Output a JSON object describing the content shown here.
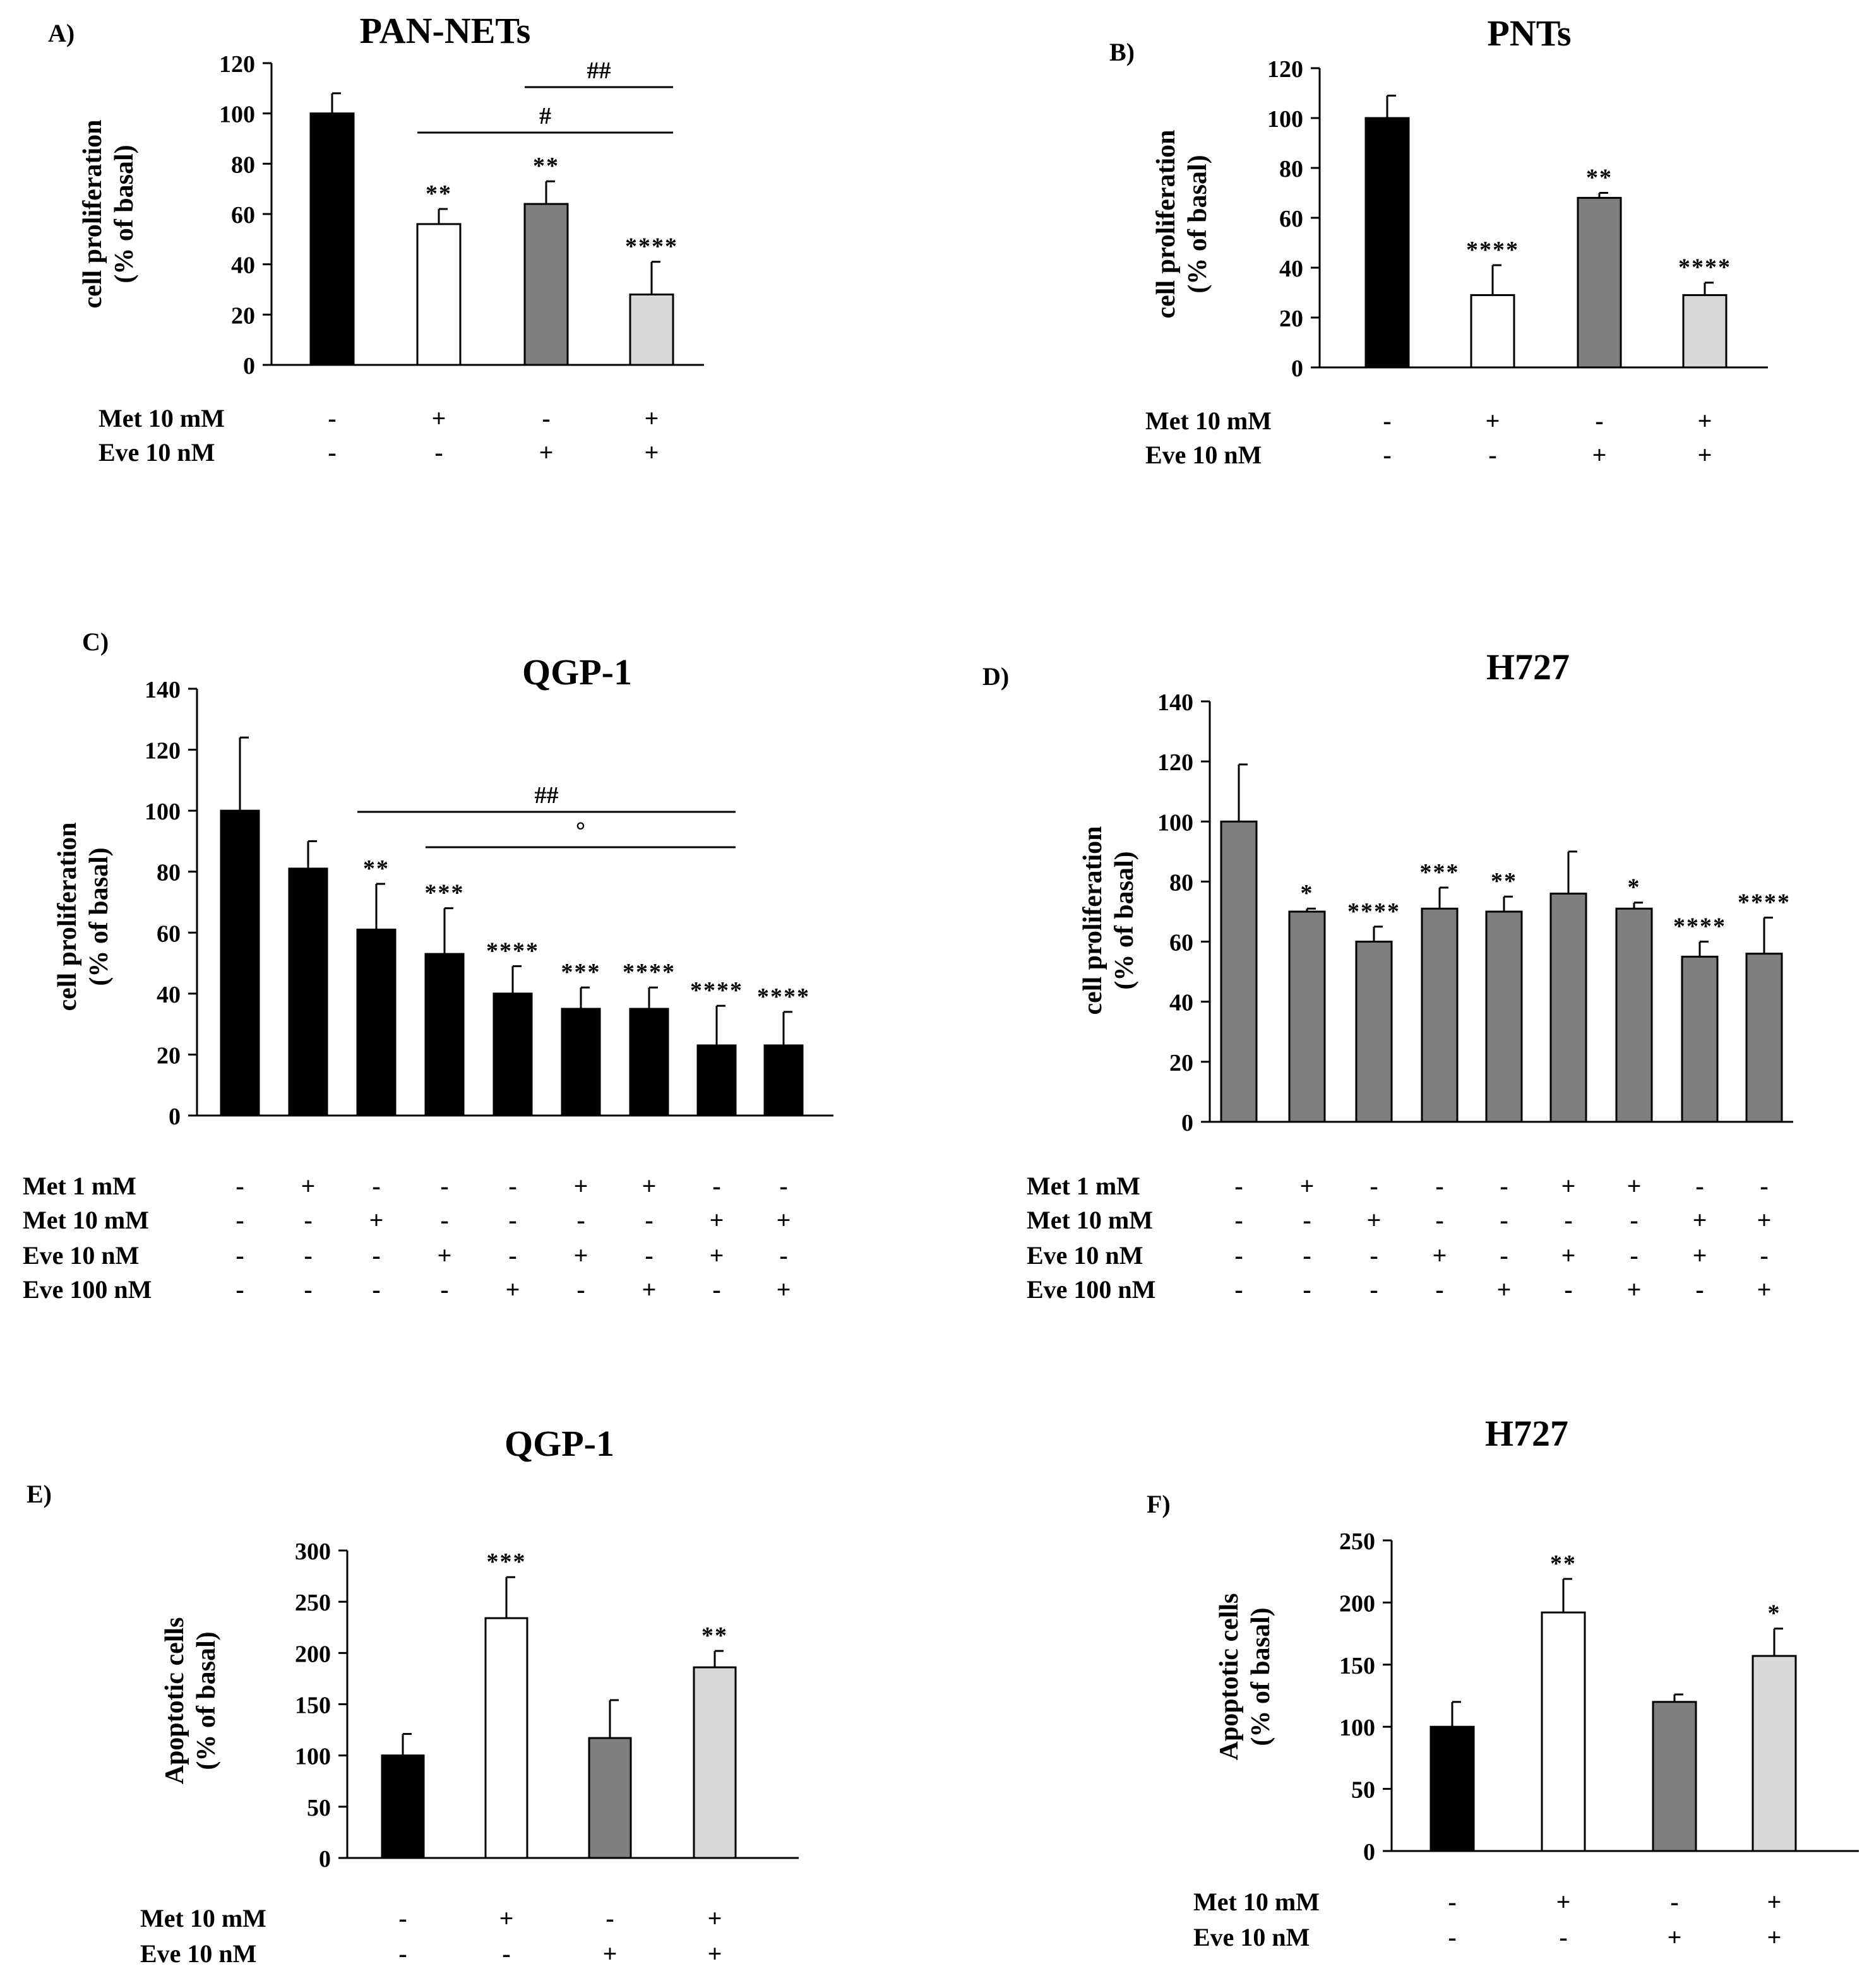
{
  "colors": {
    "black": "#000000",
    "white": "#ffffff",
    "dark_gray": "#7f7f7f",
    "light_gray": "#d9d9d9"
  },
  "chart_data": [
    {
      "id": "A",
      "type": "bar",
      "panel_label": "A)",
      "title": "PAN-NETs",
      "ylabel": [
        "cell proliferation",
        "(% of basal)"
      ],
      "ylim": [
        0,
        120
      ],
      "yticks": [
        0,
        20,
        40,
        60,
        80,
        100,
        120
      ],
      "values": [
        100,
        56,
        64,
        28
      ],
      "errors": [
        8,
        6,
        9,
        13
      ],
      "bar_colors": [
        "black",
        "white",
        "dark_gray",
        "light_gray"
      ],
      "stars": [
        "",
        "**",
        "**",
        "****"
      ],
      "conditions": [
        {
          "label": "Met 10 mM",
          "signs": [
            "-",
            "+",
            "-",
            "+"
          ]
        },
        {
          "label": "Eve 10 nM",
          "signs": [
            "-",
            "-",
            "+",
            "+"
          ]
        }
      ],
      "brackets": [
        {
          "symbol": "##",
          "from": 2,
          "to": 3
        },
        {
          "symbol": "#",
          "from": 1,
          "to": 3
        }
      ]
    },
    {
      "id": "B",
      "type": "bar",
      "panel_label": "B)",
      "title": "PNTs",
      "ylabel": [
        "cell proliferation",
        "(% of basal)"
      ],
      "ylim": [
        0,
        120
      ],
      "yticks": [
        0,
        20,
        40,
        60,
        80,
        100,
        120
      ],
      "values": [
        100,
        29,
        68,
        29
      ],
      "errors": [
        9,
        12,
        2,
        5
      ],
      "bar_colors": [
        "black",
        "white",
        "dark_gray",
        "light_gray"
      ],
      "stars": [
        "",
        "****",
        "**",
        "****"
      ],
      "conditions": [
        {
          "label": "Met 10 mM",
          "signs": [
            "-",
            "+",
            "-",
            "+"
          ]
        },
        {
          "label": "Eve 10 nM",
          "signs": [
            "-",
            "-",
            "+",
            "+"
          ]
        }
      ],
      "brackets": []
    },
    {
      "id": "C",
      "type": "bar",
      "panel_label": "C)",
      "title": "QGP-1",
      "ylabel": [
        "cell proliferation",
        "(% of basal)"
      ],
      "ylim": [
        0,
        140
      ],
      "yticks": [
        0,
        20,
        40,
        60,
        80,
        100,
        120,
        140
      ],
      "values": [
        100,
        81,
        61,
        53,
        40,
        35,
        35,
        23,
        23
      ],
      "errors": [
        24,
        9,
        15,
        15,
        9,
        7,
        7,
        13,
        11
      ],
      "bar_colors": [
        "black",
        "black",
        "black",
        "black",
        "black",
        "black",
        "black",
        "black",
        "black"
      ],
      "stars": [
        "",
        "",
        "**",
        "***",
        "****",
        "***",
        "****",
        "****",
        "****"
      ],
      "conditions": [
        {
          "label": "Met 1 mM",
          "signs": [
            "-",
            "+",
            "-",
            "-",
            "-",
            "+",
            "+",
            "-",
            "-"
          ]
        },
        {
          "label": "Met 10 mM",
          "signs": [
            "-",
            "-",
            "+",
            "-",
            "-",
            "-",
            "-",
            "+",
            "+"
          ]
        },
        {
          "label": "Eve 10 nM",
          "signs": [
            "-",
            "-",
            "-",
            "+",
            "-",
            "+",
            "-",
            "+",
            "-"
          ]
        },
        {
          "label": "Eve 100 nM",
          "signs": [
            "-",
            "-",
            "-",
            "-",
            "+",
            "-",
            "+",
            "-",
            "+"
          ]
        }
      ],
      "brackets": [
        {
          "symbol": "##",
          "from": 2,
          "to": 7
        },
        {
          "symbol": "°",
          "from": 3,
          "to": 7
        }
      ]
    },
    {
      "id": "D",
      "type": "bar",
      "panel_label": "D)",
      "title": "H727",
      "ylabel": [
        "cell proliferation",
        "(% of basal)"
      ],
      "ylim": [
        0,
        140
      ],
      "yticks": [
        0,
        20,
        40,
        60,
        80,
        100,
        120,
        140
      ],
      "values": [
        100,
        70,
        60,
        71,
        70,
        76,
        71,
        55,
        56
      ],
      "errors": [
        19,
        1,
        5,
        7,
        5,
        14,
        2,
        5,
        12
      ],
      "bar_colors": [
        "dark_gray",
        "dark_gray",
        "dark_gray",
        "dark_gray",
        "dark_gray",
        "dark_gray",
        "dark_gray",
        "dark_gray",
        "dark_gray"
      ],
      "stars": [
        "",
        "*",
        "****",
        "***",
        "**",
        "",
        "*",
        "****",
        "****"
      ],
      "conditions": [
        {
          "label": "Met 1 mM",
          "signs": [
            "-",
            "+",
            "-",
            "-",
            "-",
            "+",
            "+",
            "-",
            "-"
          ]
        },
        {
          "label": "Met 10 mM",
          "signs": [
            "-",
            "-",
            "+",
            "-",
            "-",
            "-",
            "-",
            "+",
            "+"
          ]
        },
        {
          "label": "Eve 10 nM",
          "signs": [
            "-",
            "-",
            "-",
            "+",
            "-",
            "+",
            "-",
            "+",
            "-"
          ]
        },
        {
          "label": "Eve 100 nM",
          "signs": [
            "-",
            "-",
            "-",
            "-",
            "+",
            "-",
            "+",
            "-",
            "+"
          ]
        }
      ],
      "brackets": []
    },
    {
      "id": "E",
      "type": "bar",
      "panel_label": "E)",
      "title": "QGP-1",
      "ylabel": [
        "Apoptotic cells",
        "(% of basal)"
      ],
      "ylim": [
        0,
        300
      ],
      "yticks": [
        0,
        50,
        100,
        150,
        200,
        250,
        300
      ],
      "values": [
        100,
        234,
        117,
        186
      ],
      "errors": [
        21,
        40,
        37,
        16
      ],
      "bar_colors": [
        "black",
        "white",
        "dark_gray",
        "light_gray"
      ],
      "stars": [
        "",
        "***",
        "",
        "**"
      ],
      "conditions": [
        {
          "label": "Met 10 mM",
          "signs": [
            "-",
            "+",
            "-",
            "+"
          ]
        },
        {
          "label": "Eve 10 nM",
          "signs": [
            "-",
            "-",
            "+",
            "+"
          ]
        }
      ],
      "brackets": []
    },
    {
      "id": "F",
      "type": "bar",
      "panel_label": "F)",
      "title": "H727",
      "ylabel": [
        "Apoptotic cells",
        "(% of basal)"
      ],
      "ylim": [
        0,
        250
      ],
      "yticks": [
        0,
        50,
        100,
        150,
        200,
        250
      ],
      "values": [
        100,
        192,
        120,
        157
      ],
      "errors": [
        20,
        27,
        6,
        22
      ],
      "bar_colors": [
        "black",
        "white",
        "dark_gray",
        "light_gray"
      ],
      "stars": [
        "",
        "**",
        "",
        "*"
      ],
      "conditions": [
        {
          "label": "Met 10 mM",
          "signs": [
            "-",
            "+",
            "-",
            "+"
          ]
        },
        {
          "label": "Eve 10 nM",
          "signs": [
            "-",
            "-",
            "+",
            "+"
          ]
        }
      ],
      "brackets": []
    }
  ]
}
